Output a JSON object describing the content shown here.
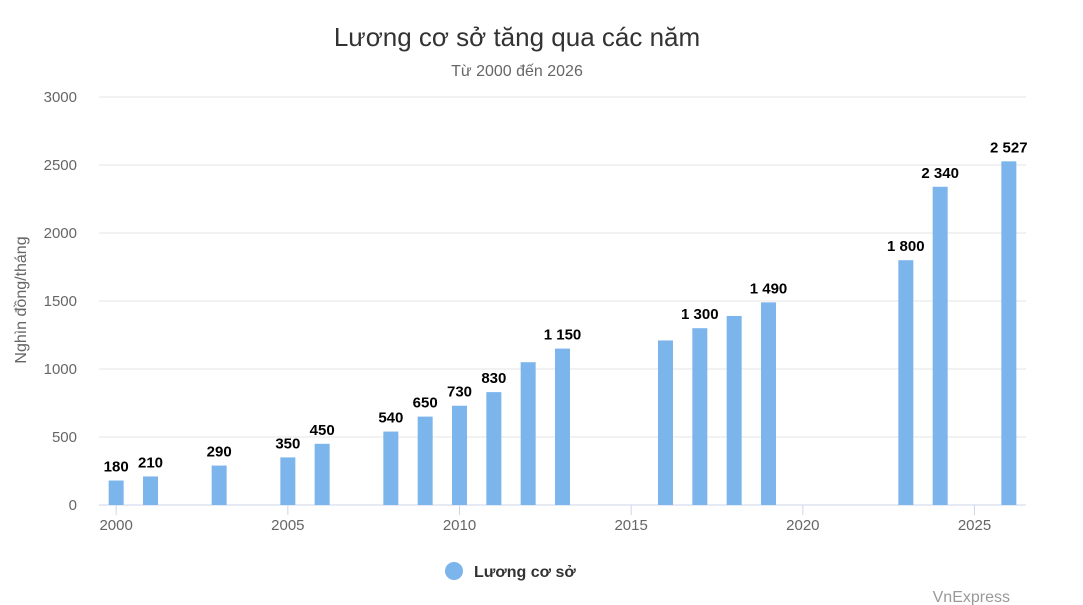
{
  "chart_data": {
    "type": "bar",
    "title": "Lương cơ sở tăng qua các năm",
    "subtitle": "Từ 2000 đến 2026",
    "ylabel": "Nghìn đồng/tháng",
    "xlabel": "",
    "ylim": [
      0,
      3000
    ],
    "y_ticks": [
      0,
      500,
      1000,
      1500,
      2000,
      2500,
      3000
    ],
    "xlim": [
      1999.5,
      2026.5
    ],
    "x_ticks": [
      2000,
      2005,
      2010,
      2015,
      2020,
      2025
    ],
    "grid": true,
    "legend_position": "bottom-center",
    "bar_color": "#7cb5ec",
    "series": [
      {
        "name": "Lương cơ sở",
        "points": [
          {
            "x": 2000,
            "y": 180,
            "label": "180"
          },
          {
            "x": 2001,
            "y": 210,
            "label": "210"
          },
          {
            "x": 2003,
            "y": 290,
            "label": "290"
          },
          {
            "x": 2005,
            "y": 350,
            "label": "350"
          },
          {
            "x": 2006,
            "y": 450,
            "label": "450"
          },
          {
            "x": 2008,
            "y": 540,
            "label": "540"
          },
          {
            "x": 2009,
            "y": 650,
            "label": "650"
          },
          {
            "x": 2010,
            "y": 730,
            "label": "730"
          },
          {
            "x": 2011,
            "y": 830,
            "label": "830"
          },
          {
            "x": 2012,
            "y": 1050,
            "label": ""
          },
          {
            "x": 2013,
            "y": 1150,
            "label": "1 150"
          },
          {
            "x": 2016,
            "y": 1210,
            "label": ""
          },
          {
            "x": 2017,
            "y": 1300,
            "label": "1 300"
          },
          {
            "x": 2018,
            "y": 1390,
            "label": ""
          },
          {
            "x": 2019,
            "y": 1490,
            "label": "1 490"
          },
          {
            "x": 2023,
            "y": 1800,
            "label": "1 800"
          },
          {
            "x": 2024,
            "y": 2340,
            "label": "2 340"
          },
          {
            "x": 2026,
            "y": 2527,
            "label": "2 527"
          }
        ]
      }
    ]
  },
  "credit": "VnExpress"
}
